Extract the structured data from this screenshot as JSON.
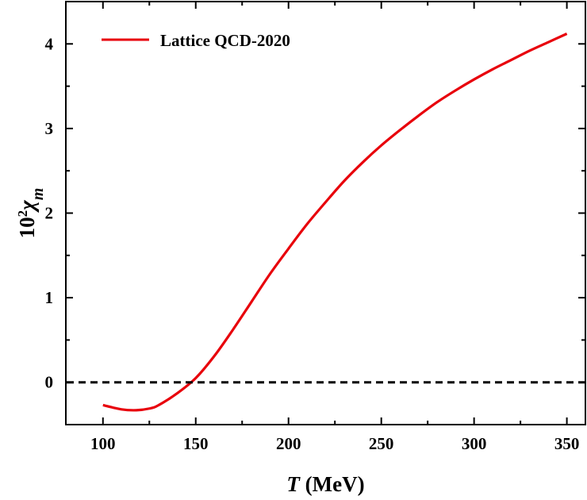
{
  "chart_data": {
    "type": "line",
    "xlabel_italic": "T",
    "xlabel_rest": " (MeV)",
    "ylabel_base": "10",
    "ylabel_sup": "2",
    "ylabel_sym": "χ",
    "ylabel_sub": "m",
    "xlim": [
      80,
      360
    ],
    "ylim": [
      -0.5,
      4.5
    ],
    "x_ticks": [
      100,
      150,
      200,
      250,
      300,
      350
    ],
    "y_ticks": [
      0,
      1,
      2,
      3,
      4
    ],
    "x_tick_labels": [
      "100",
      "150",
      "200",
      "250",
      "300",
      "350"
    ],
    "y_tick_labels": [
      "0",
      "1",
      "2",
      "3",
      "4"
    ],
    "grid": false,
    "legend_position": "top-left",
    "series": [
      {
        "name": "Lattice QCD-2020",
        "color": "#e8000b",
        "style": "solid",
        "x": [
          100,
          110,
          118,
          125,
          130,
          140,
          150,
          160,
          170,
          180,
          190,
          200,
          210,
          220,
          230,
          240,
          250,
          260,
          270,
          280,
          290,
          300,
          310,
          320,
          330,
          340,
          350
        ],
        "y": [
          -0.27,
          -0.32,
          -0.33,
          -0.31,
          -0.27,
          -0.13,
          0.05,
          0.31,
          0.62,
          0.95,
          1.28,
          1.58,
          1.87,
          2.13,
          2.38,
          2.6,
          2.8,
          2.98,
          3.15,
          3.31,
          3.45,
          3.58,
          3.7,
          3.81,
          3.92,
          4.02,
          4.12
        ]
      },
      {
        "name": "",
        "color": "#000000",
        "style": "dashed",
        "x": [
          80,
          360
        ],
        "y": [
          0,
          0
        ]
      }
    ]
  }
}
